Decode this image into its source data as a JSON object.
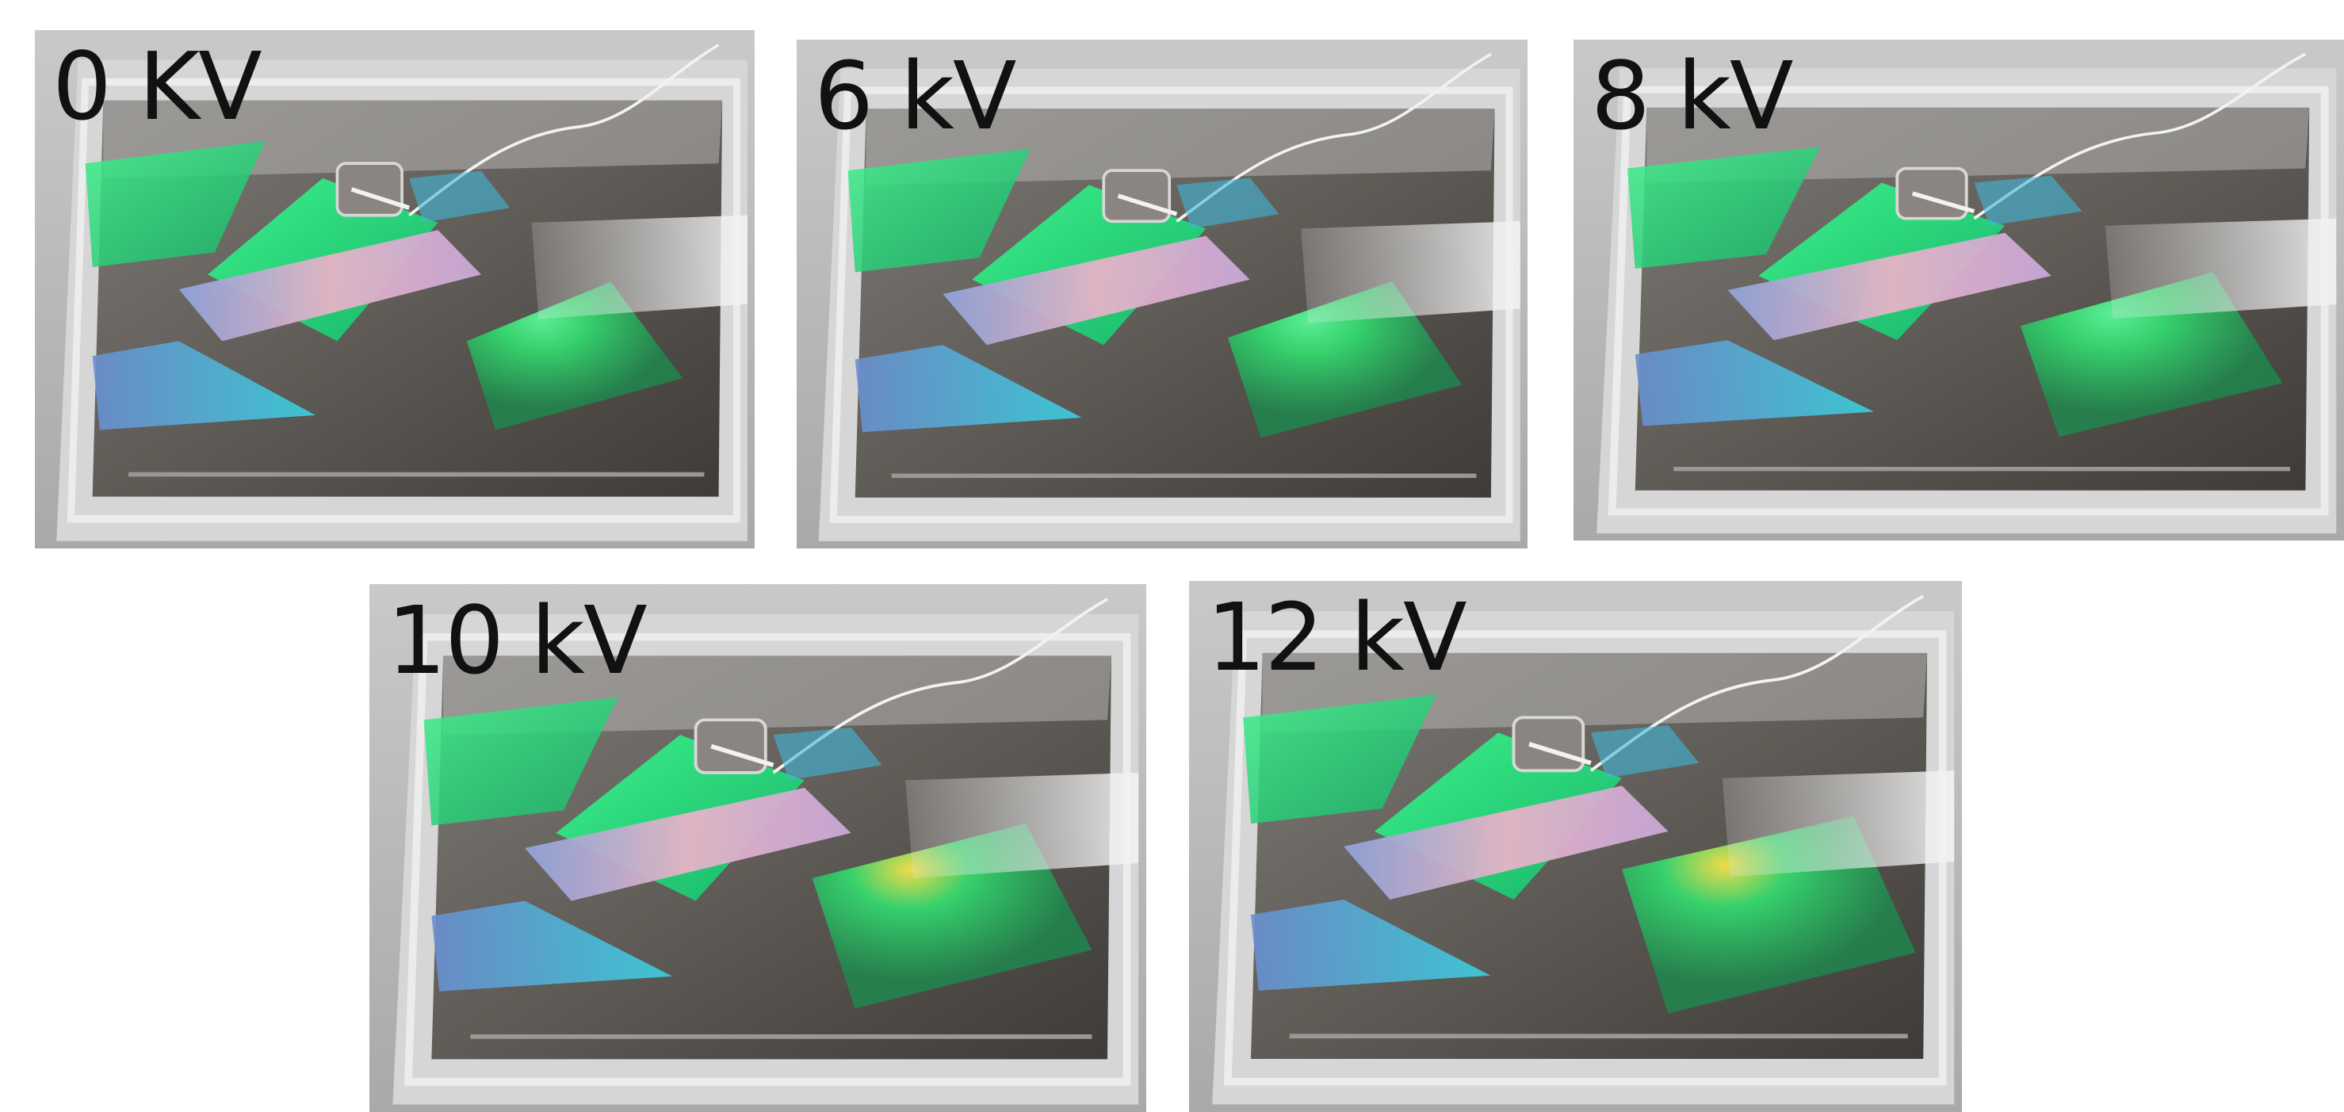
{
  "panels": [
    {
      "label": "0 KV"
    },
    {
      "label": "6 kV"
    },
    {
      "label": "8 kV"
    },
    {
      "label": "10 kV"
    },
    {
      "label": "12 kV"
    }
  ]
}
